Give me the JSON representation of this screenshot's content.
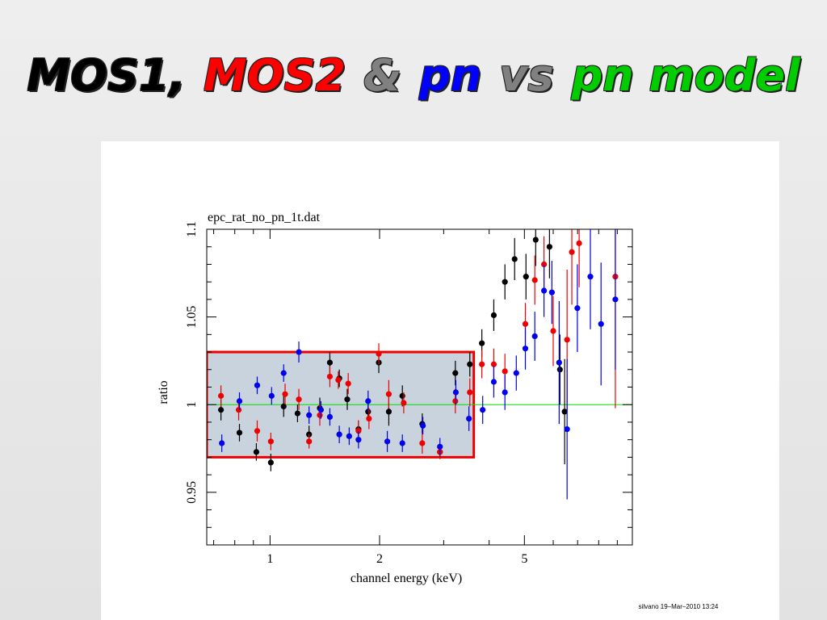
{
  "slide_title": [
    {
      "text": "MOS1,",
      "color": "#000000"
    },
    {
      "text": "MOS2",
      "color": "#ff0000"
    },
    {
      "text": "&",
      "color": "#808080"
    },
    {
      "text": "pn",
      "color": "#0000ff"
    },
    {
      "text": "vs",
      "color": "#808080"
    },
    {
      "text": "pn model",
      "color": "#00cc00"
    }
  ],
  "chart_data": {
    "type": "scatter",
    "title": "epc_rat_no_pn_1t.dat",
    "xlabel": "channel energy (keV)",
    "ylabel": "ratio",
    "footer": "silvano 19–Mar–2010 13:24",
    "xlog": true,
    "xlim": [
      0.67,
      9.9
    ],
    "ylim": [
      0.92,
      1.1
    ],
    "xticks": [
      1,
      2,
      5
    ],
    "yticks": [
      0.95,
      1,
      1.05,
      1.1
    ],
    "xminor_ticks": [
      0.7,
      0.8,
      0.9,
      3,
      4,
      6,
      7,
      8,
      9
    ],
    "yminor_ticks": [
      0.93,
      0.94,
      0.96,
      0.97,
      0.98,
      0.99,
      1.01,
      1.02,
      1.03,
      1.04,
      1.06,
      1.07,
      1.08,
      1.09
    ],
    "model_line": {
      "y": 1,
      "color": "#00dd00"
    },
    "highlight_box": {
      "xlim": [
        0.67,
        3.63
      ],
      "ylim": [
        0.97,
        1.03
      ],
      "color": "#ee0000",
      "fill": "#c8d3de"
    },
    "series": [
      {
        "color": "#000000",
        "x": [
          0.733,
          0.824,
          0.917,
          1.005,
          1.09,
          1.19,
          1.28,
          1.37,
          1.46,
          1.55,
          1.63,
          1.75,
          1.86,
          1.99,
          2.12,
          2.31,
          2.62,
          2.93,
          3.23,
          3.54,
          3.82,
          4.12,
          4.42,
          4.7,
          5.05,
          5.37,
          5.86,
          6.26,
          6.45
        ],
        "values": [
          0.997,
          0.984,
          0.973,
          0.967,
          0.999,
          0.995,
          0.983,
          0.998,
          1.024,
          1.015,
          1.003,
          0.986,
          0.996,
          1.024,
          0.996,
          1.005,
          0.989,
          0.973,
          1.018,
          1.023,
          1.035,
          1.051,
          1.07,
          1.083,
          1.073,
          1.094,
          1.09,
          1.02,
          0.996
        ],
        "yerr": [
          0.006,
          0.005,
          0.005,
          0.005,
          0.006,
          0.005,
          0.005,
          0.006,
          0.006,
          0.005,
          0.006,
          0.005,
          0.005,
          0.006,
          0.008,
          0.006,
          0.006,
          0.004,
          0.007,
          0.007,
          0.008,
          0.009,
          0.01,
          0.012,
          0.013,
          0.015,
          0.018,
          0.02,
          0.03
        ]
      },
      {
        "color": "#ee0000",
        "x": [
          0.733,
          0.82,
          0.922,
          1.005,
          1.1,
          1.2,
          1.28,
          1.37,
          1.46,
          1.54,
          1.64,
          1.75,
          1.87,
          1.99,
          2.12,
          2.33,
          2.62,
          2.93,
          3.23,
          3.54,
          3.82,
          4.12,
          4.42,
          5.03,
          5.34,
          5.66,
          6.0,
          6.55,
          6.75,
          7.07,
          8.89
        ],
        "values": [
          1.005,
          0.997,
          0.985,
          0.979,
          1.006,
          1.003,
          0.979,
          0.994,
          1.016,
          1.014,
          1.012,
          0.985,
          0.992,
          1.029,
          1.006,
          1.001,
          0.978,
          0.973,
          1.002,
          1.007,
          1.023,
          1.023,
          1.019,
          1.046,
          1.071,
          1.08,
          1.042,
          1.037,
          1.087,
          1.092,
          1.073
        ],
        "yerr": [
          0.006,
          0.006,
          0.006,
          0.005,
          0.006,
          0.006,
          0.004,
          0.006,
          0.006,
          0.005,
          0.006,
          0.006,
          0.006,
          0.006,
          0.008,
          0.006,
          0.006,
          0.004,
          0.007,
          0.008,
          0.008,
          0.009,
          0.01,
          0.012,
          0.014,
          0.016,
          0.02,
          0.04,
          0.03,
          0.025,
          0.075
        ]
      },
      {
        "color": "#0000ee",
        "x": [
          0.737,
          0.824,
          0.922,
          1.01,
          1.09,
          1.2,
          1.28,
          1.38,
          1.46,
          1.55,
          1.65,
          1.75,
          1.86,
          2.1,
          2.31,
          2.63,
          2.93,
          3.24,
          3.52,
          3.84,
          4.12,
          4.42,
          4.75,
          5.03,
          5.34,
          5.66,
          5.95,
          6.23,
          6.55,
          6.99,
          7.59,
          8.12,
          8.89
        ],
        "values": [
          0.978,
          1.002,
          1.011,
          1.005,
          1.018,
          1.03,
          0.994,
          0.997,
          0.993,
          0.983,
          0.982,
          0.98,
          1.002,
          0.979,
          0.978,
          0.988,
          0.976,
          1.007,
          0.992,
          0.997,
          1.013,
          1.007,
          1.018,
          1.032,
          1.039,
          1.065,
          1.064,
          1.024,
          0.986,
          1.055,
          1.073,
          1.046,
          1.06
        ],
        "yerr": [
          0.005,
          0.005,
          0.005,
          0.005,
          0.005,
          0.006,
          0.005,
          0.005,
          0.005,
          0.005,
          0.005,
          0.005,
          0.006,
          0.006,
          0.005,
          0.005,
          0.005,
          0.007,
          0.007,
          0.008,
          0.009,
          0.01,
          0.01,
          0.012,
          0.014,
          0.015,
          0.018,
          0.035,
          0.04,
          0.025,
          0.03,
          0.035,
          0.04
        ]
      }
    ]
  }
}
